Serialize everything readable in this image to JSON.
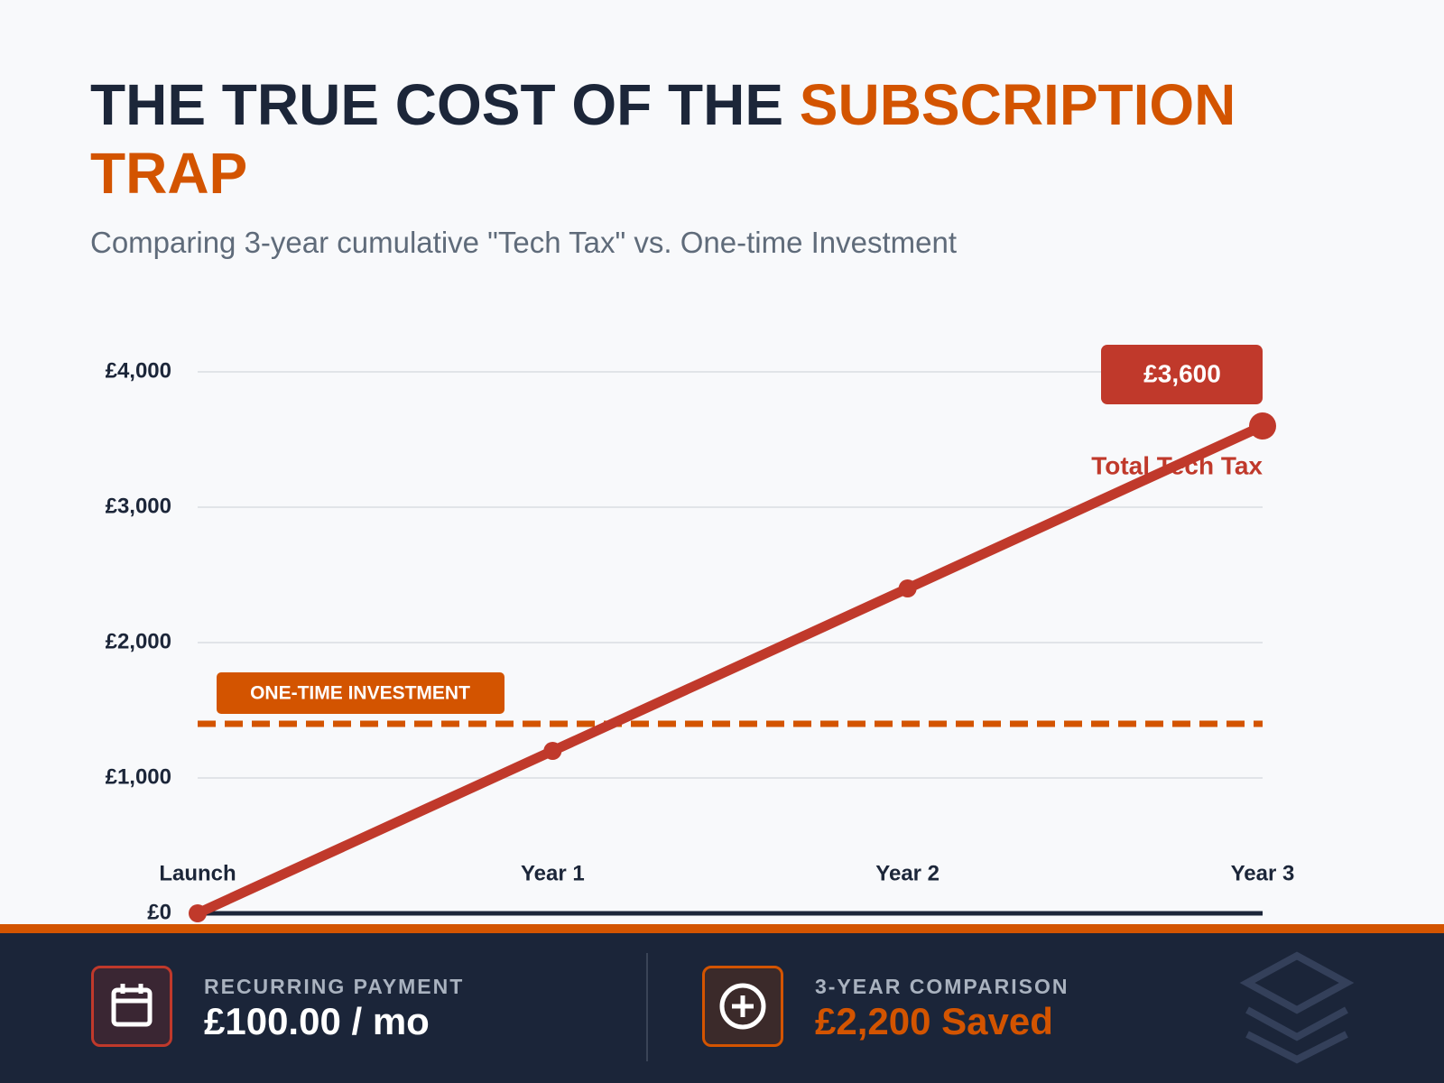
{
  "header": {
    "title": "THE TRUE COST OF THE ",
    "title_highlight": "SUBSCRIPTION TRAP",
    "subtitle": "Comparing 3-year cumulative \"Tech Tax\" vs. One-time Investment"
  },
  "chart_data": {
    "type": "line",
    "categories": [
      "Launch",
      "Year 1",
      "Year 2",
      "Year 3"
    ],
    "series": [
      {
        "name": "Total Tech Tax",
        "color": "#c0392b",
        "values": [
          0,
          1200,
          2400,
          3600
        ],
        "value_labels": [
          null,
          null,
          null,
          "£3,600"
        ]
      }
    ],
    "reference": {
      "value": 1400,
      "label": "ONE-TIME INVESTMENT",
      "color": "#d35400"
    },
    "ylim": [
      0,
      4000
    ],
    "yticks": [
      {
        "value": 0,
        "label": "£0"
      },
      {
        "value": 1000,
        "label": "£1,000"
      },
      {
        "value": 2000,
        "label": "£2,000"
      },
      {
        "value": 3000,
        "label": "£3,000"
      },
      {
        "value": 4000,
        "label": "£4,000"
      }
    ],
    "grid": true
  },
  "footer": {
    "items": [
      {
        "label": "RECURRING PAYMENT",
        "value": "£100.00 / mo"
      },
      {
        "label": "3-YEAR COMPARISON",
        "value": "£2,200 Saved"
      }
    ]
  }
}
